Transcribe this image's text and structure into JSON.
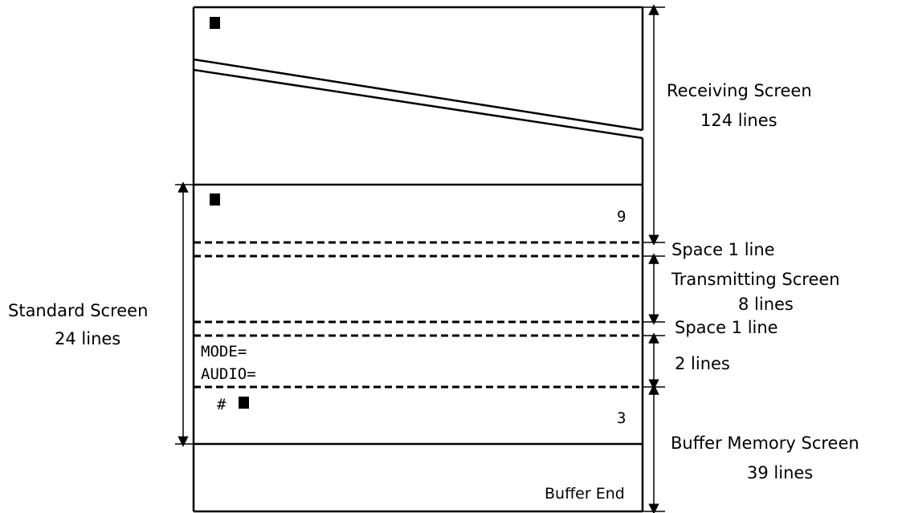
{
  "receiving_screen": {
    "label": "Receiving Screen",
    "lines": "124 lines"
  },
  "standard_screen": {
    "label": "Standard Screen",
    "lines": "24 lines"
  },
  "space_top": {
    "label": "Space 1 line"
  },
  "transmitting_screen": {
    "label": "Transmitting Screen",
    "lines": "8 lines"
  },
  "space_bottom": {
    "label": "Space 1 line"
  },
  "status_area": {
    "lines": "2 lines",
    "mode_text": "MODE=",
    "audio_text": "AUDIO="
  },
  "buffer_memory_screen": {
    "label": "Buffer Memory Screen",
    "lines": "39 lines",
    "end_label": "Buffer End"
  },
  "screen_markers": {
    "standard_number": "9",
    "buffer_number": "3",
    "hash_symbol": "#"
  }
}
